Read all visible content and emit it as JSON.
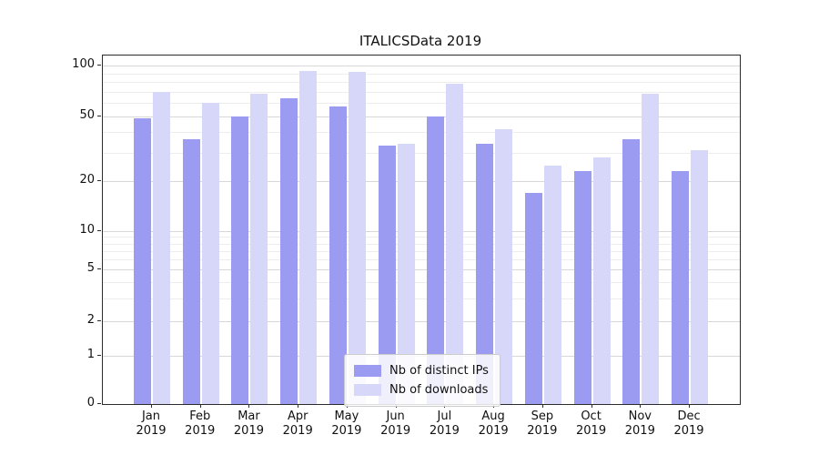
{
  "title": "ITALICSData 2019",
  "chart_data": {
    "type": "bar",
    "title": "ITALICSData 2019",
    "yscale": "symlog",
    "grid": true,
    "legend_position": "lower center",
    "yticks": [
      0,
      1,
      2,
      5,
      10,
      20,
      50,
      100
    ],
    "ylim": [
      0,
      120
    ],
    "categories": [
      {
        "month": "Jan",
        "year": "2019"
      },
      {
        "month": "Feb",
        "year": "2019"
      },
      {
        "month": "Mar",
        "year": "2019"
      },
      {
        "month": "Apr",
        "year": "2019"
      },
      {
        "month": "May",
        "year": "2019"
      },
      {
        "month": "Jun",
        "year": "2019"
      },
      {
        "month": "Jul",
        "year": "2019"
      },
      {
        "month": "Aug",
        "year": "2019"
      },
      {
        "month": "Sep",
        "year": "2019"
      },
      {
        "month": "Oct",
        "year": "2019"
      },
      {
        "month": "Nov",
        "year": "2019"
      },
      {
        "month": "Dec",
        "year": "2019"
      }
    ],
    "series": [
      {
        "name": "Nb of distinct IPs",
        "color": "#9b9bf1",
        "values": [
          49,
          36,
          50,
          64,
          57,
          33,
          50,
          34,
          17,
          23,
          36,
          23
        ]
      },
      {
        "name": "Nb of downloads",
        "color": "#d7d7f9",
        "values": [
          70,
          60,
          68,
          93,
          92,
          34,
          78,
          42,
          25,
          28,
          68,
          31
        ]
      }
    ]
  }
}
